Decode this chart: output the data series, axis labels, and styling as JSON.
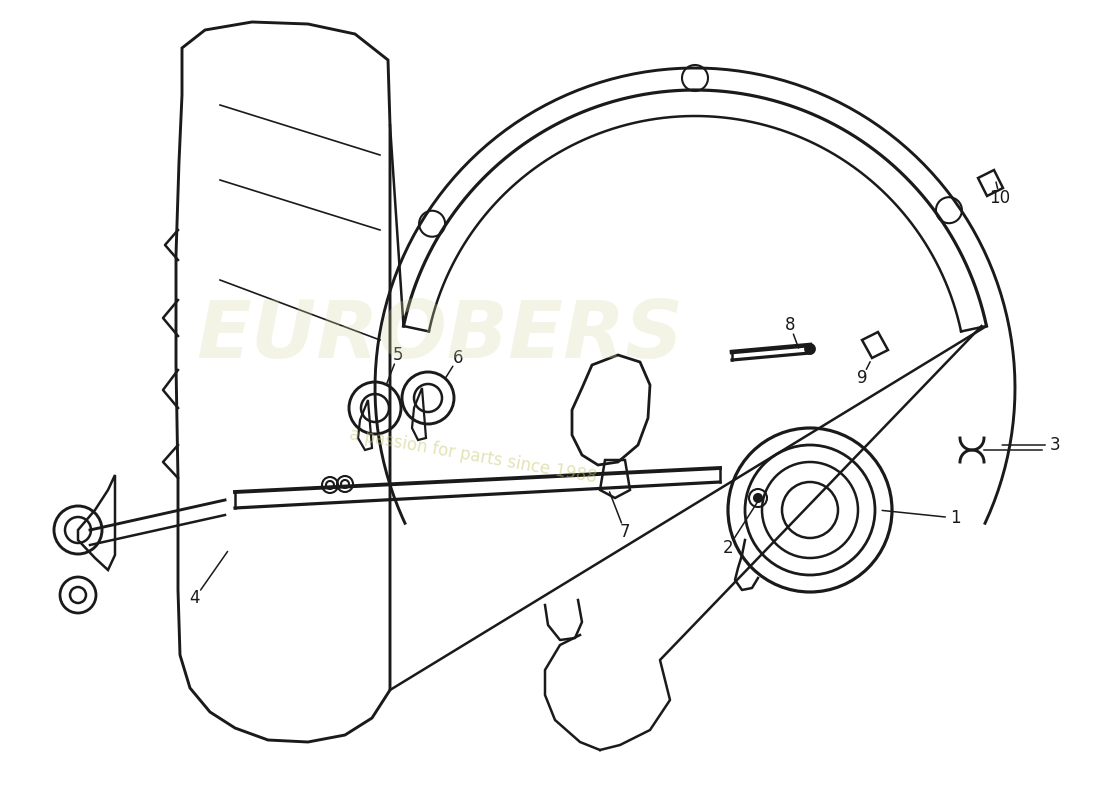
{
  "background_color": "#ffffff",
  "line_color": "#1a1a1a",
  "line_width": 1.8,
  "watermark_color1": "#d8d8a8",
  "watermark_color2": "#c8c870",
  "label_data": [
    [
      "1",
      955,
      518,
      878,
      510
    ],
    [
      "2",
      728,
      548,
      762,
      495
    ],
    [
      "3",
      1055,
      445,
      998,
      445
    ],
    [
      "4",
      195,
      598,
      230,
      548
    ],
    [
      "5",
      398,
      355,
      385,
      388
    ],
    [
      "6",
      458,
      358,
      443,
      382
    ],
    [
      "7",
      625,
      532,
      608,
      488
    ],
    [
      "8",
      790,
      325,
      800,
      352
    ],
    [
      "9",
      862,
      378,
      872,
      358
    ],
    [
      "10",
      1000,
      198,
      995,
      178
    ]
  ]
}
